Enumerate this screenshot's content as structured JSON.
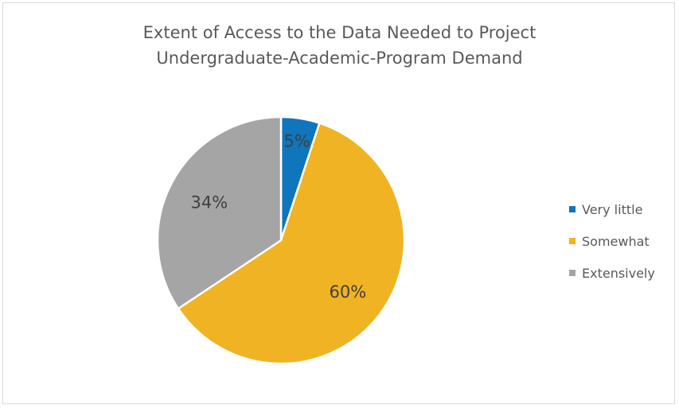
{
  "chart_data": {
    "type": "pie",
    "title": "Extent of Access to the Data Needed to Project Undergraduate-Academic-Program Demand",
    "title_lines": [
      "Extent of Access to the Data Needed to Project",
      "Undergraduate-Academic-Program Demand"
    ],
    "categories": [
      "Very little",
      "Somewhat",
      "Extensively"
    ],
    "values": [
      5,
      60,
      34
    ],
    "data_labels": [
      "5%",
      "60%",
      "34%"
    ],
    "colors": [
      "#0f75bc",
      "#f0b323",
      "#a5a5a5"
    ],
    "legend_position": "right",
    "start_angle": "12 o'clock, clockwise"
  }
}
